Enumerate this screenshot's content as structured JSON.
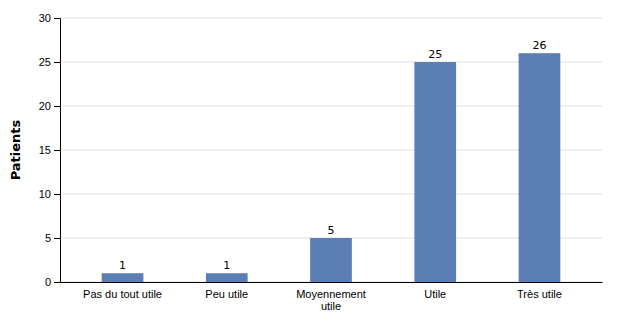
{
  "chart_data": {
    "type": "bar",
    "categories": [
      "Pas du tout utile",
      "Peu utile",
      "Moyennement\nutile",
      "Utile",
      "Très utile"
    ],
    "values": [
      1,
      1,
      5,
      25,
      26
    ],
    "color": "#5b7fb5",
    "ylabel": "Patients",
    "ylim": [
      0,
      30
    ],
    "yticks": [
      0,
      5,
      10,
      15,
      20,
      25,
      30
    ],
    "grid": true,
    "data_labels": true
  }
}
